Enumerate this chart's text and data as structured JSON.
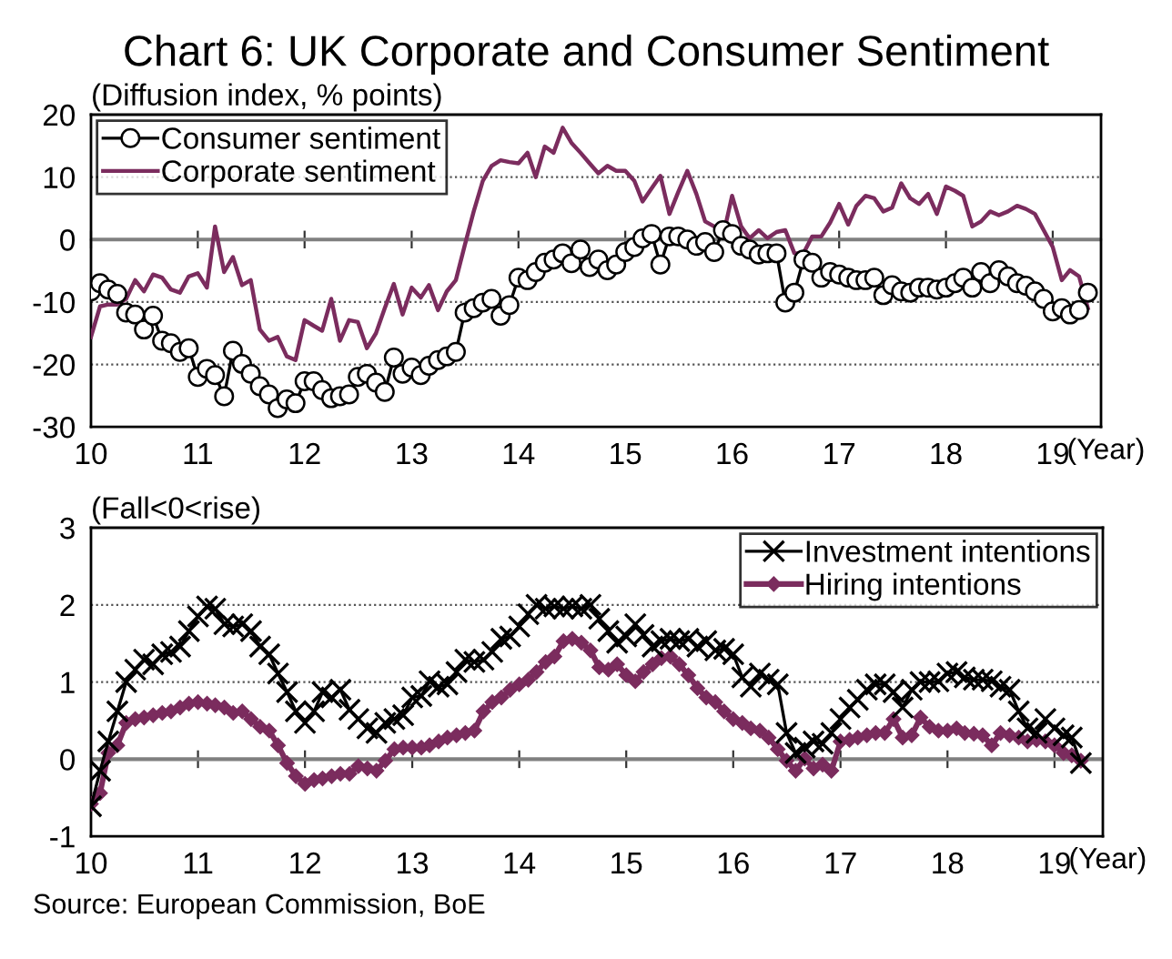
{
  "chart_data": [
    {
      "type": "line",
      "title": "Chart 6: UK Corporate and Consumer Sentiment",
      "ylabel": "(Diffusion index, % points)",
      "xlabel": "(Year)",
      "x": [
        "2010-01",
        "2010-02",
        "2010-03",
        "2010-04",
        "2010-05",
        "2010-06",
        "2010-07",
        "2010-08",
        "2010-09",
        "2010-10",
        "2010-11",
        "2010-12",
        "2011-01",
        "2011-02",
        "2011-03",
        "2011-04",
        "2011-05",
        "2011-06",
        "2011-07",
        "2011-08",
        "2011-09",
        "2011-10",
        "2011-11",
        "2011-12",
        "2012-01",
        "2012-02",
        "2012-03",
        "2012-04",
        "2012-05",
        "2012-06",
        "2012-07",
        "2012-08",
        "2012-09",
        "2012-10",
        "2012-11",
        "2012-12",
        "2013-01",
        "2013-02",
        "2013-03",
        "2013-04",
        "2013-05",
        "2013-06",
        "2013-07",
        "2013-08",
        "2013-09",
        "2013-10",
        "2013-11",
        "2013-12",
        "2014-01",
        "2014-02",
        "2014-03",
        "2014-04",
        "2014-05",
        "2014-06",
        "2014-07",
        "2014-08",
        "2014-09",
        "2014-10",
        "2014-11",
        "2014-12",
        "2015-01",
        "2015-02",
        "2015-03",
        "2015-04",
        "2015-05",
        "2015-06",
        "2015-07",
        "2015-08",
        "2015-09",
        "2015-10",
        "2015-11",
        "2015-12",
        "2016-01",
        "2016-02",
        "2016-03",
        "2016-04",
        "2016-05",
        "2016-06",
        "2016-07",
        "2016-08",
        "2016-09",
        "2016-10",
        "2016-11",
        "2016-12",
        "2017-01",
        "2017-02",
        "2017-03",
        "2017-04",
        "2017-05",
        "2017-06",
        "2017-07",
        "2017-08",
        "2017-09",
        "2017-10",
        "2017-11",
        "2017-12",
        "2018-01",
        "2018-02",
        "2018-03",
        "2018-04",
        "2018-05",
        "2018-06",
        "2018-07",
        "2018-08",
        "2018-09",
        "2018-10",
        "2018-11",
        "2018-12",
        "2019-01",
        "2019-02",
        "2019-03",
        "2019-04",
        "2019-05"
      ],
      "series": [
        {
          "name": "Consumer sentiment",
          "color": "#000000",
          "marker": "circle",
          "values": [
            -8.3,
            -7,
            -8,
            -8.7,
            -11.7,
            -12,
            -14.4,
            -12.2,
            -16.2,
            -16.6,
            -18,
            -17.4,
            -22,
            -20.7,
            -21.7,
            -25.1,
            -17.8,
            -19.9,
            -21.5,
            -23.5,
            -24.8,
            -27,
            -25.6,
            -26.2,
            -22.7,
            -22.7,
            -24.1,
            -25.4,
            -25.1,
            -24.8,
            -22,
            -21.5,
            -22.9,
            -24.4,
            -18.9,
            -21.5,
            -20.5,
            -21.7,
            -20.2,
            -19.3,
            -18.7,
            -18,
            -11.7,
            -11,
            -10.1,
            -9.5,
            -12.2,
            -10.5,
            -6.1,
            -6.5,
            -5.2,
            -3.7,
            -3.2,
            -2.2,
            -3.8,
            -1.6,
            -4.4,
            -3.2,
            -4.9,
            -4,
            -2,
            -1.2,
            0.2,
            0.9,
            -4,
            0.5,
            0.5,
            0,
            -1,
            -0.4,
            -2,
            1.5,
            0.9,
            -1,
            -1.6,
            -2.4,
            -2.2,
            -2.2,
            -10.1,
            -8.5,
            -3.2,
            -3.7,
            -6.1,
            -5.2,
            -5.6,
            -6.1,
            -6.5,
            -6.5,
            -6.1,
            -8.9,
            -7.3,
            -8.3,
            -8.5,
            -7.7,
            -7.7,
            -8,
            -7.7,
            -7,
            -6.1,
            -7.7,
            -5.2,
            -7,
            -4.9,
            -5.9,
            -7,
            -7.4,
            -8.3,
            -9.5,
            -11.5,
            -11,
            -12,
            -11.3,
            -8.5
          ]
        },
        {
          "name": "Corporate sentiment",
          "color": "#7b2c5e",
          "marker": "none",
          "values": [
            -15.6,
            -10.7,
            -10.4,
            -10.4,
            -9.5,
            -6.5,
            -8.3,
            -5.6,
            -6.1,
            -8,
            -8.5,
            -5.9,
            -5.4,
            -7.7,
            2.1,
            -5.2,
            -2.8,
            -7.3,
            -6.5,
            -14.4,
            -16.2,
            -15.6,
            -18.7,
            -19.3,
            -12.9,
            -13.8,
            -14.6,
            -9.5,
            -16.2,
            -12.9,
            -13.2,
            -17.4,
            -15,
            -11,
            -7.1,
            -12,
            -7.7,
            -9.3,
            -7.3,
            -11.3,
            -8.3,
            -6.5,
            -1,
            4.5,
            9.4,
            11.8,
            12.7,
            12.4,
            12.2,
            13.9,
            10,
            14.9,
            13.9,
            17.9,
            15.5,
            13.9,
            12.2,
            10.6,
            11.8,
            11,
            11,
            9.4,
            6.1,
            8.2,
            10.2,
            4.1,
            7.6,
            11,
            7.3,
            2.9,
            2.1,
            0.5,
            7,
            2.1,
            0.2,
            1.5,
            0.2,
            1.2,
            1.5,
            -2.2,
            -2.2,
            0.5,
            0.5,
            2.7,
            5.7,
            2.4,
            5.4,
            7,
            6.6,
            4.5,
            5.1,
            9,
            6.6,
            5.7,
            7.3,
            4.1,
            8.5,
            7.8,
            7,
            2.1,
            2.9,
            4.5,
            3.9,
            4.5,
            5.4,
            4.9,
            4.1,
            1.5,
            -1.2,
            -6.5,
            -4.9,
            -5.9,
            -11
          ]
        }
      ],
      "xlim": [
        "2010-01-01",
        "2019-06-15"
      ],
      "xticks": [
        {
          "value": "2010",
          "label": "10"
        },
        {
          "value": "2011",
          "label": "11"
        },
        {
          "value": "2012",
          "label": "12"
        },
        {
          "value": "2013",
          "label": "13"
        },
        {
          "value": "2014",
          "label": "14"
        },
        {
          "value": "2015",
          "label": "15"
        },
        {
          "value": "2016",
          "label": "16"
        },
        {
          "value": "2017",
          "label": "17"
        },
        {
          "value": "2018",
          "label": "18"
        },
        {
          "value": "2019",
          "label": "19"
        }
      ],
      "ylim": [
        -30,
        20
      ],
      "yticks": [
        -30,
        -20,
        -10,
        0,
        10,
        20
      ],
      "ref_lines": [
        {
          "axis": "y",
          "value": 0,
          "color": "#808080"
        }
      ],
      "grid": "y",
      "legend": "top left"
    },
    {
      "type": "line",
      "ylabel": "(Fall<0<rise)",
      "xlabel": "(Year)",
      "x": [
        "2010-01",
        "2010-02",
        "2010-03",
        "2010-04",
        "2010-05",
        "2010-06",
        "2010-07",
        "2010-08",
        "2010-09",
        "2010-10",
        "2010-11",
        "2010-12",
        "2011-01",
        "2011-02",
        "2011-03",
        "2011-04",
        "2011-05",
        "2011-06",
        "2011-07",
        "2011-08",
        "2011-09",
        "2011-10",
        "2011-11",
        "2011-12",
        "2012-01",
        "2012-02",
        "2012-03",
        "2012-04",
        "2012-05",
        "2012-06",
        "2012-07",
        "2012-08",
        "2012-09",
        "2012-10",
        "2012-11",
        "2012-12",
        "2013-01",
        "2013-02",
        "2013-03",
        "2013-04",
        "2013-05",
        "2013-06",
        "2013-07",
        "2013-08",
        "2013-09",
        "2013-10",
        "2013-11",
        "2013-12",
        "2014-01",
        "2014-02",
        "2014-03",
        "2014-04",
        "2014-05",
        "2014-06",
        "2014-07",
        "2014-08",
        "2014-09",
        "2014-10",
        "2014-11",
        "2014-12",
        "2015-01",
        "2015-02",
        "2015-03",
        "2015-04",
        "2015-05",
        "2015-06",
        "2015-07",
        "2015-08",
        "2015-09",
        "2015-10",
        "2015-11",
        "2015-12",
        "2016-01",
        "2016-02",
        "2016-03",
        "2016-04",
        "2016-05",
        "2016-06",
        "2016-07",
        "2016-08",
        "2016-09",
        "2016-10",
        "2016-11",
        "2016-12",
        "2017-01",
        "2017-02",
        "2017-03",
        "2017-04",
        "2017-05",
        "2017-06",
        "2017-07",
        "2017-08",
        "2017-09",
        "2017-10",
        "2017-11",
        "2017-12",
        "2018-01",
        "2018-02",
        "2018-03",
        "2018-04",
        "2018-05",
        "2018-06",
        "2018-07",
        "2018-08",
        "2018-09",
        "2018-10",
        "2018-11",
        "2018-12",
        "2019-01",
        "2019-02",
        "2019-03",
        "2019-04"
      ],
      "series": [
        {
          "name": "Investment intentions",
          "color": "#000000",
          "marker": "cross",
          "values": [
            -0.61,
            -0.15,
            0.23,
            0.62,
            1.0,
            1.16,
            1.29,
            1.23,
            1.36,
            1.39,
            1.46,
            1.66,
            1.85,
            1.98,
            1.95,
            1.75,
            1.72,
            1.75,
            1.66,
            1.46,
            1.36,
            1.11,
            0.87,
            0.62,
            0.47,
            0.62,
            0.87,
            0.8,
            0.9,
            0.64,
            0.52,
            0.4,
            0.34,
            0.47,
            0.52,
            0.57,
            0.8,
            0.82,
            1.01,
            0.94,
            0.97,
            1.13,
            1.29,
            1.26,
            1.29,
            1.39,
            1.56,
            1.59,
            1.72,
            1.88,
            2.0,
            1.95,
            1.98,
            1.95,
            1.98,
            1.95,
            2.0,
            1.82,
            1.66,
            1.51,
            1.59,
            1.75,
            1.61,
            1.46,
            1.53,
            1.56,
            1.53,
            1.56,
            1.46,
            1.53,
            1.41,
            1.43,
            1.36,
            1.06,
            0.94,
            1.11,
            1.03,
            0.97,
            0.34,
            0.08,
            0.15,
            0.23,
            0.2,
            0.34,
            0.52,
            0.67,
            0.77,
            0.9,
            0.97,
            0.97,
            0.87,
            0.67,
            0.9,
            1.0,
            1.0,
            1.01,
            1.11,
            1.13,
            1.06,
            1.03,
            1.03,
            1.01,
            0.94,
            0.9,
            0.62,
            0.4,
            0.34,
            0.52,
            0.4,
            0.31,
            0.28,
            -0.05
          ]
        },
        {
          "name": "Hiring intentions",
          "color": "#7b2c5e",
          "marker": "diamond",
          "values": [
            -0.58,
            -0.44,
            0.08,
            0.18,
            0.47,
            0.52,
            0.54,
            0.57,
            0.6,
            0.62,
            0.67,
            0.72,
            0.74,
            0.72,
            0.7,
            0.67,
            0.6,
            0.62,
            0.52,
            0.42,
            0.37,
            0.18,
            -0.05,
            -0.22,
            -0.32,
            -0.27,
            -0.25,
            -0.22,
            -0.19,
            -0.19,
            -0.09,
            -0.12,
            -0.15,
            -0.02,
            0.13,
            0.15,
            0.15,
            0.15,
            0.18,
            0.23,
            0.28,
            0.31,
            0.34,
            0.37,
            0.62,
            0.74,
            0.8,
            0.9,
            0.97,
            1.03,
            1.13,
            1.26,
            1.33,
            1.53,
            1.56,
            1.51,
            1.41,
            1.19,
            1.16,
            1.23,
            1.09,
            1.01,
            1.13,
            1.23,
            1.31,
            1.33,
            1.23,
            1.09,
            0.92,
            0.8,
            0.74,
            0.62,
            0.52,
            0.47,
            0.4,
            0.37,
            0.28,
            0.13,
            -0.02,
            -0.15,
            0.01,
            -0.12,
            -0.07,
            -0.15,
            0.23,
            0.25,
            0.28,
            0.31,
            0.34,
            0.34,
            0.52,
            0.28,
            0.31,
            0.54,
            0.42,
            0.37,
            0.37,
            0.4,
            0.34,
            0.33,
            0.31,
            0.18,
            0.34,
            0.31,
            0.28,
            0.23,
            0.25,
            0.23,
            0.18,
            0.08,
            0.05,
            -0.02
          ]
        }
      ],
      "xlim": [
        "2010-01-01",
        "2019-06-15"
      ],
      "xticks": [
        {
          "value": "2010",
          "label": "10"
        },
        {
          "value": "2011",
          "label": "11"
        },
        {
          "value": "2012",
          "label": "12"
        },
        {
          "value": "2013",
          "label": "13"
        },
        {
          "value": "2014",
          "label": "14"
        },
        {
          "value": "2015",
          "label": "15"
        },
        {
          "value": "2016",
          "label": "16"
        },
        {
          "value": "2017",
          "label": "17"
        },
        {
          "value": "2018",
          "label": "18"
        },
        {
          "value": "2019",
          "label": "19"
        }
      ],
      "ylim": [
        -1,
        3
      ],
      "yticks": [
        -1,
        0,
        1,
        2,
        3
      ],
      "ref_lines": [
        {
          "axis": "y",
          "value": 0,
          "color": "#808080"
        }
      ],
      "grid": "y",
      "legend": "top right",
      "annotations": [
        "Source: European Commission, BoE"
      ]
    }
  ]
}
